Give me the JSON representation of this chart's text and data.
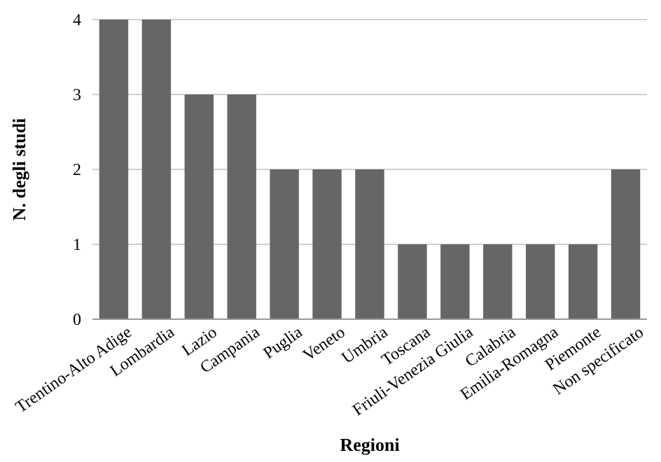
{
  "chart_data": {
    "type": "bar",
    "xlabel": "Regioni",
    "ylabel": "N. degli studi",
    "categories": [
      "Trentino-Alto Adige",
      "Lombardia",
      "Lazio",
      "Campania",
      "Puglia",
      "Veneto",
      "Umbria",
      "Toscana",
      "Friuli-Venezia Giulia",
      "Calabria",
      "Emilia-Romagna",
      "Piemonte",
      "Non specificato"
    ],
    "values": [
      4,
      4,
      3,
      3,
      2,
      2,
      2,
      1,
      1,
      1,
      1,
      1,
      2
    ],
    "color": "#666666",
    "ylim": [
      0,
      4
    ],
    "yticks": [
      0,
      1,
      2,
      3,
      4
    ],
    "grid": "y"
  }
}
